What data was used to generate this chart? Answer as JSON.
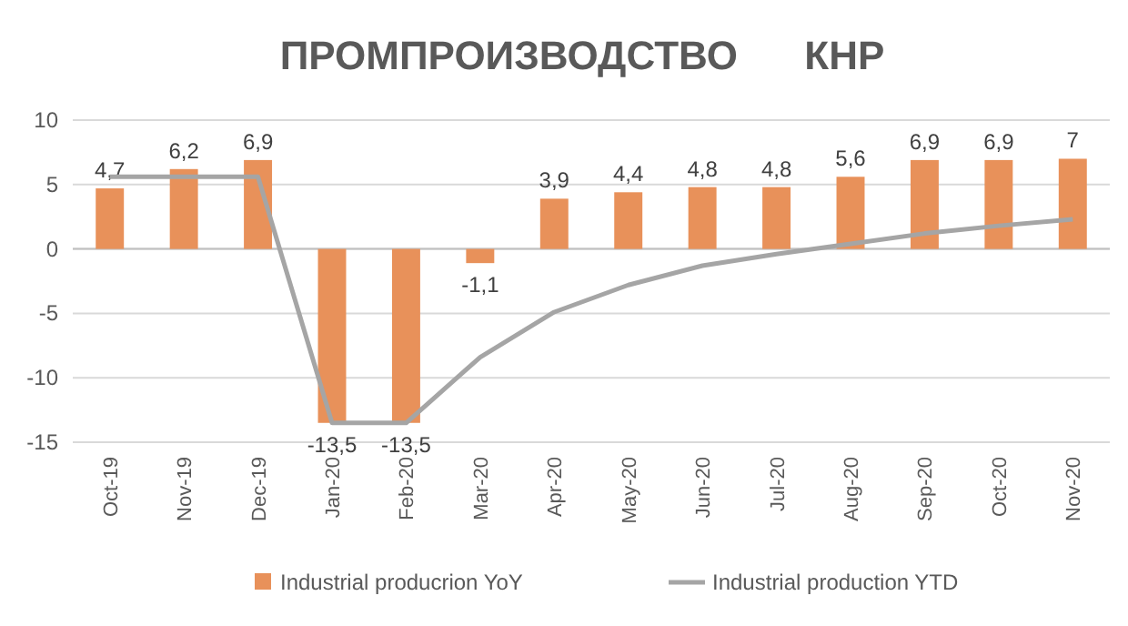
{
  "chart_data": {
    "type": "bar",
    "title": "ПРОМПРОИЗВОДСТВО      КНР",
    "categories": [
      "Oct-19",
      "Nov-19",
      "Dec-19",
      "Jan-20",
      "Feb-20",
      "Mar-20",
      "Apr-20",
      "May-20",
      "Jun-20",
      "Jul-20",
      "Aug-20",
      "Sep-20",
      "Oct-20",
      "Nov-20"
    ],
    "series": [
      {
        "name": "Industrial producrion YoY",
        "color": "#e8915a",
        "values": [
          4.7,
          6.2,
          6.9,
          -13.5,
          -13.5,
          -1.1,
          3.9,
          4.4,
          4.8,
          4.8,
          5.6,
          6.9,
          6.9,
          7
        ],
        "value_labels": [
          "4,7",
          "6,2",
          "6,9",
          "-13,5",
          "-13,5",
          "-1,1",
          "3,9",
          "4,4",
          "4,8",
          "4,8",
          "5,6",
          "6,9",
          "6,9",
          "7"
        ]
      },
      {
        "name": "Industrial production YTD",
        "color": "#a5a5a5",
        "type": "line",
        "values": [
          5.6,
          5.6,
          5.6,
          -13.5,
          -13.5,
          -8.4,
          -4.9,
          -2.8,
          -1.3,
          -0.4,
          0.4,
          1.2,
          1.8,
          2.3
        ]
      }
    ],
    "ylim": [
      -15,
      10
    ],
    "yticks": [
      -15,
      -10,
      -5,
      0,
      5,
      10
    ],
    "grid": "y",
    "legend": "bottom",
    "marker": "none"
  }
}
